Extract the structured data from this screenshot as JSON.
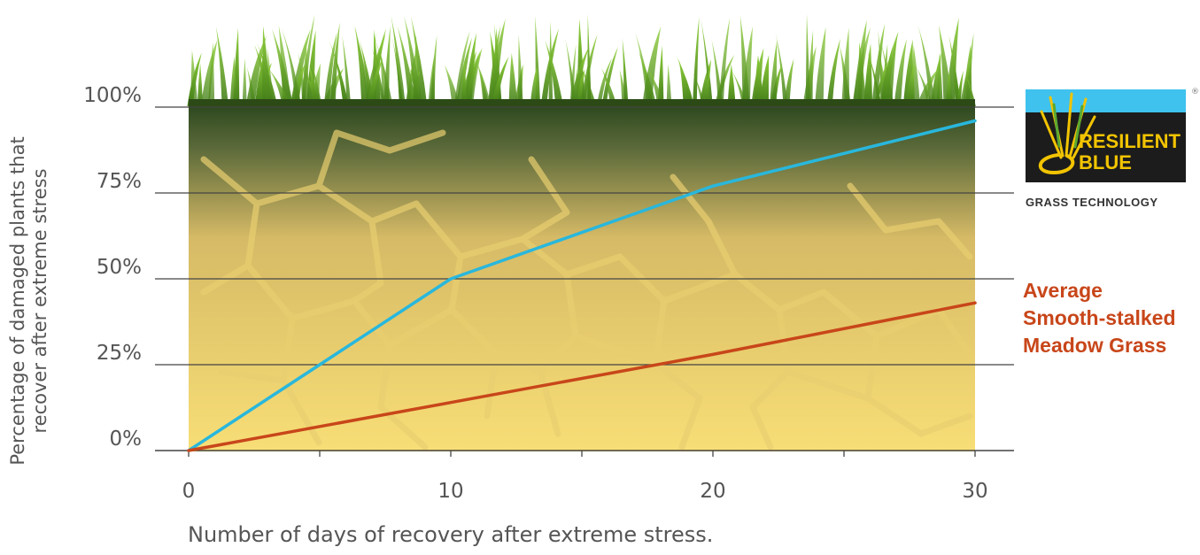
{
  "chart_data": {
    "type": "line",
    "xlabel": "Number of days of recovery after extreme stress.",
    "ylabel_lines": [
      "Percentage of damaged plants that",
      "recover after extreme stress"
    ],
    "x_ticks": [
      0,
      10,
      20,
      30
    ],
    "x_tick_labels": [
      "0",
      "10",
      "20",
      "30"
    ],
    "y_ticks": [
      0,
      25,
      50,
      75,
      100
    ],
    "y_tick_labels": [
      "0%",
      "25%",
      "50%",
      "75%",
      "100%"
    ],
    "xlim": [
      0,
      30
    ],
    "ylim": [
      0,
      100
    ],
    "grid": true,
    "series": [
      {
        "name": "RESILIENT BLUE",
        "color": "#29b7dc",
        "x": [
          0,
          5,
          10,
          20,
          30
        ],
        "y": [
          0,
          25,
          50,
          77,
          96
        ]
      },
      {
        "name": "Average Smooth-stalked Meadow Grass",
        "name_lines": [
          "Average",
          "Smooth-stalked",
          "Meadow Grass"
        ],
        "color": "#c8461a",
        "x": [
          0,
          10,
          20,
          30
        ],
        "y": [
          0,
          14,
          28,
          43
        ]
      }
    ]
  },
  "logo": {
    "line1": "RESILIENT",
    "line2": "BLUE",
    "subtitle": "GRASS TECHNOLOGY",
    "registered": "®",
    "colors": {
      "top_band": "#3fc2ee",
      "box": "#1c1c1c",
      "text": "#f2c400",
      "subtitle": "#333333"
    }
  },
  "colors": {
    "axis": "#444444",
    "grid": "#444444",
    "soil_top": "#2f4a20",
    "soil_mid": "#d6ba66",
    "soil_bottom": "#f8de76",
    "grass_dark": "#4e8c1e",
    "grass_light": "#8fd03a"
  }
}
